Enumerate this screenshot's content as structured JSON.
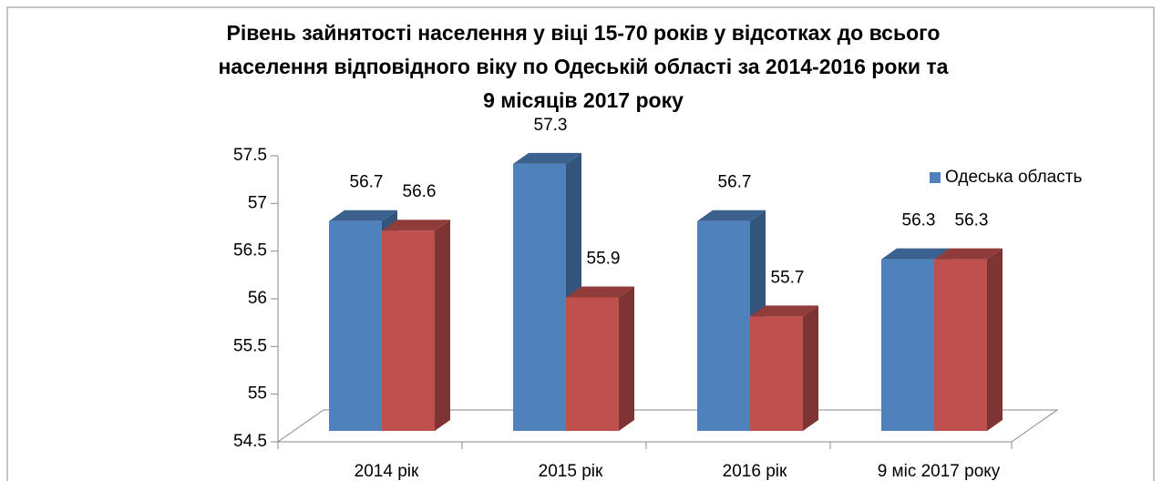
{
  "chart_data": {
    "type": "bar",
    "title_lines": [
      "Рівень зайнятості населення у віці 15-70 років у відсотках до всього",
      "населення відповідного віку по Одеській  області за 2014-2016 роки та",
      "9 місяців 2017 року"
    ],
    "categories": [
      "2014 рік",
      "2015 рік",
      "2016 рік",
      "9 міс 2017 року"
    ],
    "series": [
      {
        "name": "Одеська область",
        "color": "#4f81bd",
        "values": [
          56.7,
          57.3,
          56.7,
          56.3
        ]
      },
      {
        "color": "#c0504d",
        "values": [
          56.6,
          55.9,
          55.7,
          56.3
        ]
      }
    ],
    "ylim": [
      54.5,
      57.5
    ],
    "yticks": [
      57.5,
      57,
      56.5,
      56,
      55.5,
      55,
      54.5
    ],
    "legend": "right"
  }
}
